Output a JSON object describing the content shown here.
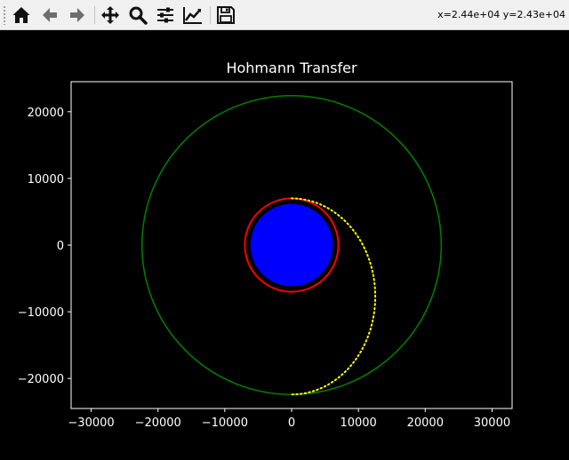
{
  "toolbar": {
    "buttons": [
      {
        "name": "home-button",
        "icon": "home-icon"
      },
      {
        "name": "back-button",
        "icon": "arrow-left-icon"
      },
      {
        "name": "forward-button",
        "icon": "arrow-right-icon"
      },
      {
        "name": "pan-button",
        "icon": "move-icon"
      },
      {
        "name": "zoom-button",
        "icon": "magnifier-icon"
      },
      {
        "name": "configure-subplots-button",
        "icon": "sliders-icon"
      },
      {
        "name": "edit-axes-button",
        "icon": "line-chart-icon"
      },
      {
        "name": "save-button",
        "icon": "floppy-disk-icon"
      }
    ],
    "coordinates": "x=2.44e+04 y=2.43e+04"
  },
  "colors": {
    "background": "#000000",
    "text": "#ffffff",
    "planet": "#0000ff",
    "initial_orbit": "#ff0000",
    "target_orbit": "#008000",
    "transfer_orbit": "#ffff00"
  },
  "chart_data": {
    "type": "line",
    "title": "Hohmann Transfer",
    "xlabel": "",
    "ylabel": "",
    "xlim": [
      -33000,
      33000
    ],
    "ylim": [
      -24500,
      24500
    ],
    "xticks": [
      -30000,
      -20000,
      -10000,
      0,
      10000,
      20000,
      30000
    ],
    "xtick_labels": [
      "−30000",
      "−20000",
      "−10000",
      "0",
      "10000",
      "20000",
      "30000"
    ],
    "yticks": [
      20000,
      10000,
      0,
      -10000,
      -20000
    ],
    "ytick_labels": [
      "20000",
      "10000",
      "0",
      "−10000",
      "−20000"
    ],
    "grid": false,
    "planet": {
      "center": [
        0,
        0
      ],
      "radius": 6371,
      "fill": "#0000ff",
      "edge": "#000000"
    },
    "series": [
      {
        "kind": "circle",
        "center": [
          0,
          0
        ],
        "radius": 7000,
        "color": "#ff0000",
        "style": "solid"
      },
      {
        "kind": "circle",
        "center": [
          0,
          0
        ],
        "radius": 22400,
        "color": "#008000",
        "style": "solid"
      },
      {
        "kind": "half-ellipse",
        "periapsis": [
          0,
          7000
        ],
        "apoapsis": [
          0,
          -22400
        ],
        "semi_major": 14700,
        "eccentricity": 0.5238,
        "side": "right",
        "color": "#ffff00",
        "style": "dotted"
      }
    ]
  }
}
